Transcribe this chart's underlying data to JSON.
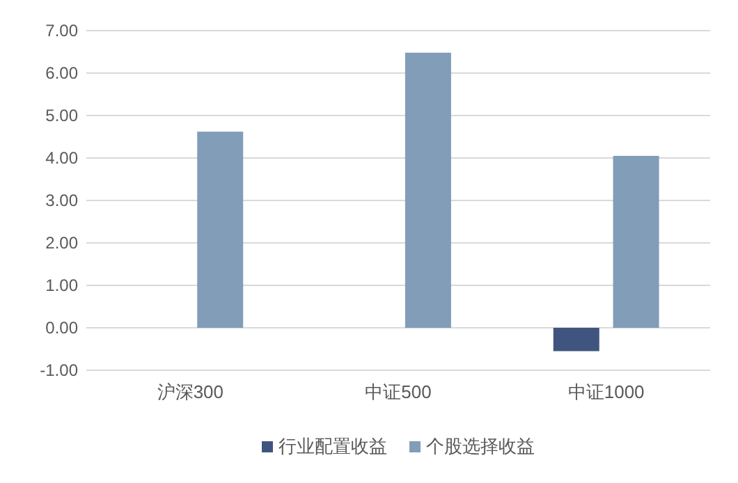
{
  "chart_data": {
    "type": "bar",
    "categories": [
      "沪深300",
      "中证500",
      "中证1000"
    ],
    "series": [
      {
        "name": "行业配置收益",
        "color": "#3f5580",
        "values": [
          0,
          0,
          -0.55
        ]
      },
      {
        "name": "个股选择收益",
        "color": "#819db8",
        "values": [
          4.62,
          6.48,
          4.05
        ]
      }
    ],
    "ylim": [
      -1,
      7
    ],
    "yticks": [
      {
        "value": -1,
        "label": "-1.00"
      },
      {
        "value": 0,
        "label": "0.00"
      },
      {
        "value": 1,
        "label": "1.00"
      },
      {
        "value": 2,
        "label": "2.00"
      },
      {
        "value": 3,
        "label": "3.00"
      },
      {
        "value": 4,
        "label": "4.00"
      },
      {
        "value": 5,
        "label": "5.00"
      },
      {
        "value": 6,
        "label": "6.00"
      },
      {
        "value": 7,
        "label": "7.00"
      }
    ],
    "grid": "y",
    "legend": "bottom"
  }
}
